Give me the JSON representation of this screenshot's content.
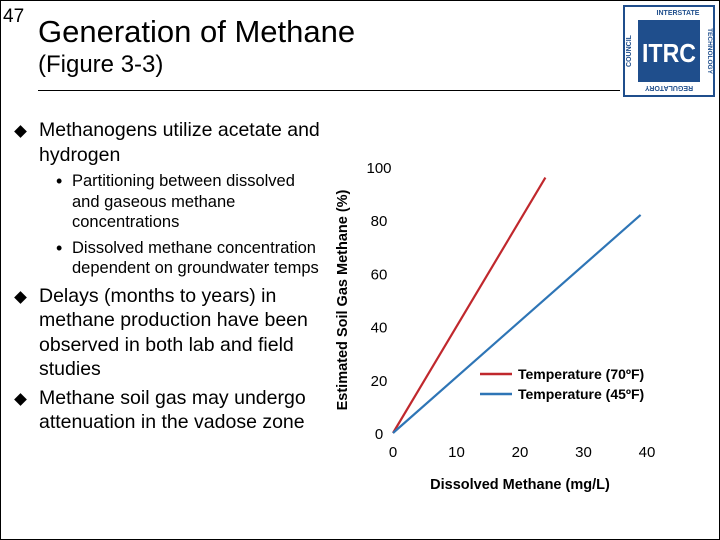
{
  "page_number": "47",
  "title": "Generation of Methane",
  "subtitle": "(Figure 3-3)",
  "logo": {
    "letters": "ITRC",
    "ring_top": "INTERSTATE",
    "ring_mid": "TECHNOLOGY",
    "ring_left": "COUNCIL",
    "ring_bottom": "REGULATORY",
    "color": "#1f4e8c"
  },
  "bullets": {
    "b1": "Methanogens utilize acetate and hydrogen",
    "b1_sub1": "Partitioning between dissolved and gaseous methane concentrations",
    "b1_sub2": "Dissolved methane concentration dependent on groundwater temps",
    "b2": "Delays (months to years) in methane production have been observed in both lab and field studies",
    "b3": "Methane soil gas may undergo attenuation in the vadose zone"
  },
  "chart_data": {
    "type": "line",
    "xlabel": "Dissolved Methane (mg/L)",
    "ylabel": "Estimated Soil Gas Methane (%)",
    "xlim": [
      0,
      40
    ],
    "ylim": [
      0,
      100
    ],
    "xticks": [
      "0",
      "10",
      "20",
      "30",
      "40"
    ],
    "yticks": [
      "0",
      "20",
      "40",
      "60",
      "80",
      "100"
    ],
    "series": [
      {
        "name": "Temperature (70ºF)",
        "color": "#c0282d",
        "x": [
          0,
          24
        ],
        "y": [
          0,
          96
        ]
      },
      {
        "name": "Temperature (45ºF)",
        "color": "#2e75b6",
        "x": [
          0,
          39
        ],
        "y": [
          0,
          82
        ]
      }
    ],
    "legend": "right",
    "grid": false
  }
}
